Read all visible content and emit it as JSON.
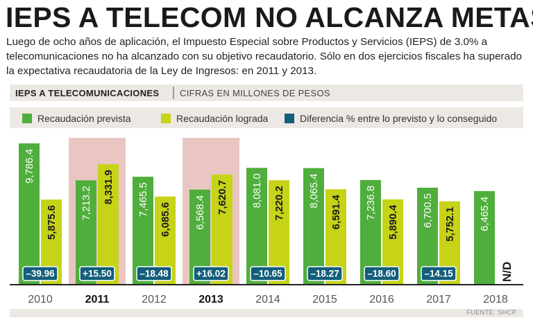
{
  "title": "IEPS A TELECOM NO ALCANZA METAS",
  "intro": "Luego de ocho años de aplicación, el Impuesto Especial sobre Productos y Servicios (IEPS) de 3.0% a telecomunicaciones no ha alcanzado con su objetivo recaudatorio. Sólo en dos ejercicios fiscales ha superado la expectativa recaudatoria de la Ley de Ingresos: en 2011 y 2013.",
  "section_title": "IEPS A TELECOMUNICACIONES",
  "section_subtitle": "CIFRAS EN MILLONES DE PESOS",
  "legend": [
    {
      "label": "Recaudación prevista",
      "color": "#4fae3c"
    },
    {
      "label": "Recaudación lograda",
      "color": "#c6d317"
    },
    {
      "label": "Diferencia % entre lo previsto y lo conseguido",
      "color": "#135e7b"
    }
  ],
  "colors": {
    "prevista": "#4fae3c",
    "lograda": "#c6d317",
    "diferencia": "#135e7b",
    "highlight": "#e9c6c2",
    "axis": "#222222"
  },
  "source": "FUENTE: SHCP.",
  "chart_data": {
    "type": "bar",
    "title": "IEPS A TELECOMUNICACIONES",
    "subtitle": "CIFRAS EN MILLONES DE PESOS",
    "categories": [
      "2010",
      "2011",
      "2012",
      "2013",
      "2014",
      "2015",
      "2016",
      "2017",
      "2018"
    ],
    "highlighted": [
      "2011",
      "2013"
    ],
    "series": [
      {
        "name": "Recaudación prevista",
        "values": [
          9786.4,
          7213.2,
          7465.5,
          6568.4,
          8081.0,
          8065.4,
          7236.8,
          6700.5,
          6465.4
        ],
        "labels": [
          "9,786.4",
          "7,213.2",
          "7,465.5",
          "6,568.4",
          "8,081.0",
          "8,065.4",
          "7,236.8",
          "6,700.5",
          "6,465.4"
        ]
      },
      {
        "name": "Recaudación lograda",
        "values": [
          5875.6,
          8331.9,
          6085.6,
          7620.7,
          7220.2,
          6591.4,
          5890.4,
          5752.1,
          null
        ],
        "labels": [
          "5,875.6",
          "8,331.9",
          "6,085.6",
          "7,620.7",
          "7,220.2",
          "6,591.4",
          "5,890.4",
          "5,752.1",
          "N/D"
        ]
      },
      {
        "name": "Diferencia % entre lo previsto y lo conseguido",
        "values": [
          -39.96,
          15.5,
          -18.48,
          16.02,
          -10.65,
          -18.27,
          -18.6,
          -14.15,
          null
        ],
        "labels": [
          "–39.96",
          "+15.50",
          "–18.48",
          "+16.02",
          "–10.65",
          "–18.27",
          "–18.60",
          "–14.15",
          ""
        ]
      }
    ],
    "ylim": [
      0,
      10000
    ],
    "xlabel": "",
    "ylabel": ""
  }
}
